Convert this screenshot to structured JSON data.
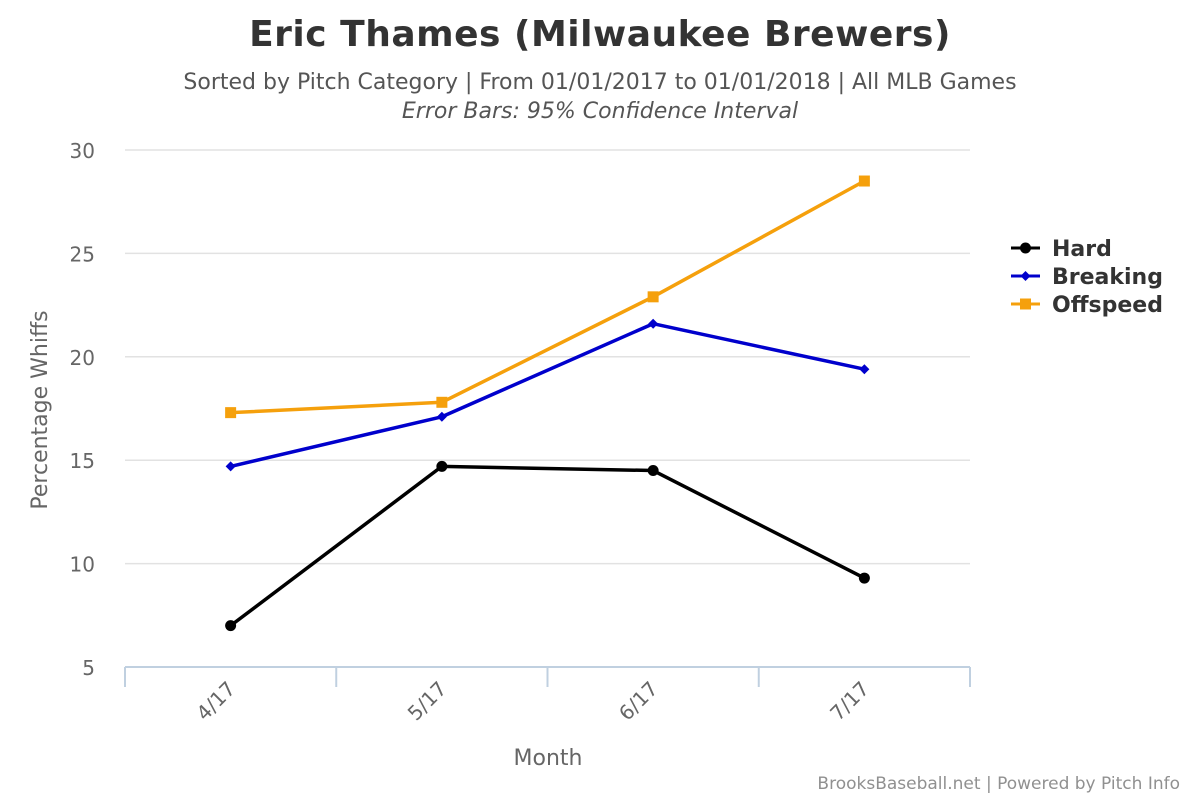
{
  "chart_data": {
    "type": "line",
    "title": "Eric Thames (Milwaukee Brewers)",
    "subtitle": "Sorted by Pitch Category | From 01/01/2017 to 01/01/2018 | All MLB Games",
    "note": "Error Bars: 95% Confidence Interval",
    "xlabel": "Month",
    "ylabel": "Percentage Whiffs",
    "categories": [
      "4/17",
      "5/17",
      "6/17",
      "7/17"
    ],
    "ylim": [
      5,
      30
    ],
    "yticks": [
      "5",
      "10",
      "15",
      "20",
      "25",
      "30"
    ],
    "grid": true,
    "legend_position": "right",
    "series": [
      {
        "name": "Hard",
        "values": [
          7.0,
          14.7,
          14.5,
          9.3
        ],
        "color": "#000000",
        "marker": "circle"
      },
      {
        "name": "Breaking",
        "values": [
          14.7,
          17.1,
          21.6,
          19.4
        ],
        "color": "#0000cc",
        "marker": "diamond"
      },
      {
        "name": "Offspeed",
        "values": [
          17.3,
          17.8,
          22.9,
          28.5
        ],
        "color": "#f5a00c",
        "marker": "square"
      }
    ]
  },
  "credits": "BrooksBaseball.net | Powered by Pitch Info"
}
